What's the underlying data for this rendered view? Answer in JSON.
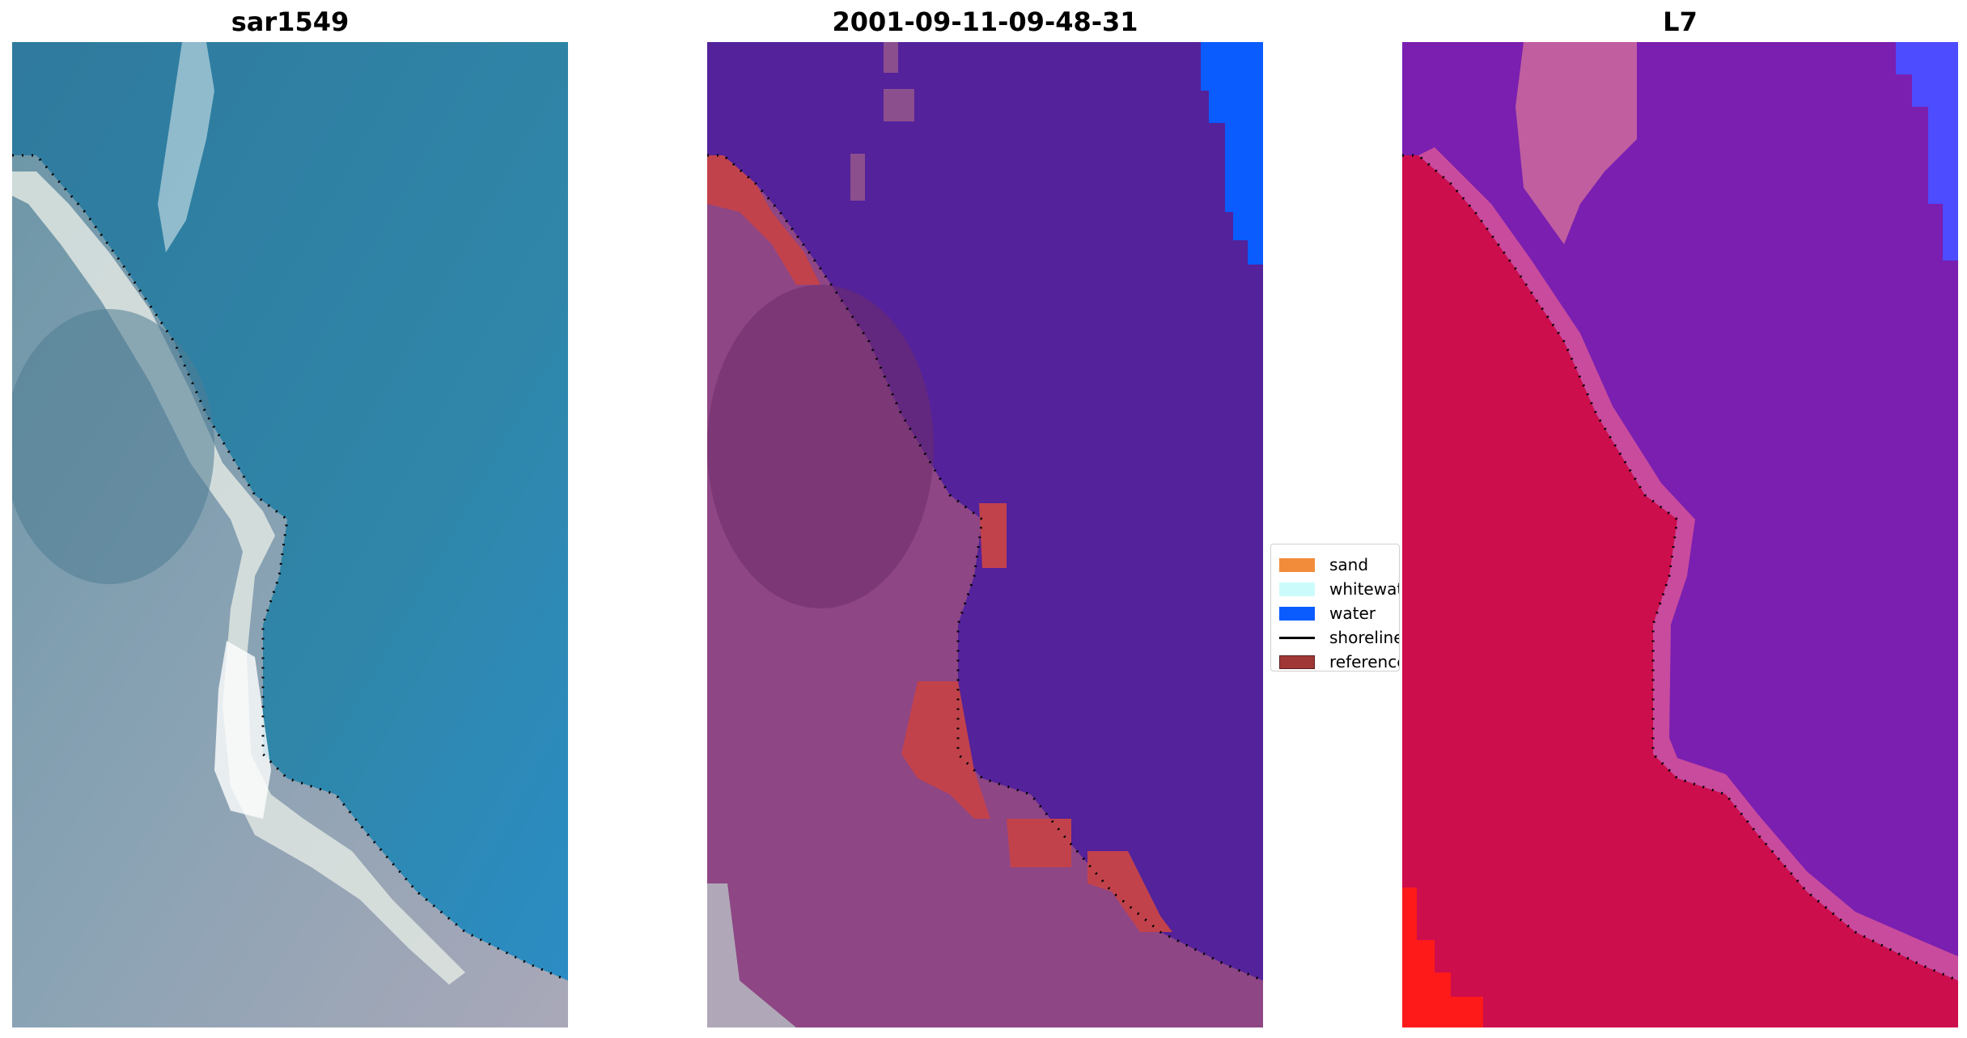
{
  "panels": [
    {
      "title": "sar1549",
      "style": "rgb"
    },
    {
      "title": "2001-09-11-09-48-31",
      "style": "classified"
    },
    {
      "title": "L7",
      "style": "ndwi"
    }
  ],
  "legend": [
    {
      "label": "sand",
      "color": "#f28c3a",
      "kind": "patch"
    },
    {
      "label": "whitewat",
      "color": "#ccfbfb",
      "kind": "patch"
    },
    {
      "label": "water",
      "color": "#0a5cff",
      "kind": "patch"
    },
    {
      "label": "shoreline",
      "color": "#000000",
      "kind": "line"
    },
    {
      "label": "reference",
      "color": "#a03838",
      "kind": "patch"
    }
  ]
}
